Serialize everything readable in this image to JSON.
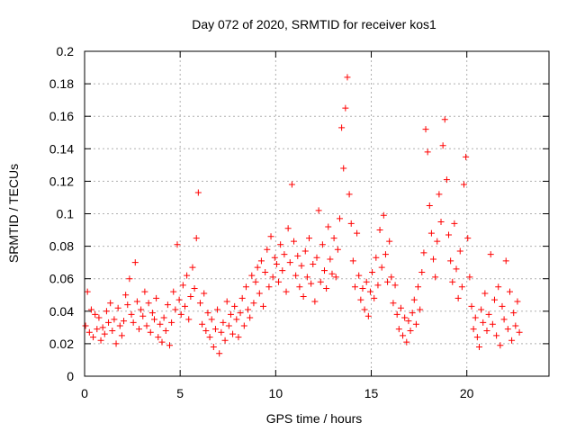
{
  "chart_data": {
    "type": "scatter",
    "title": "Day 072 of 2020, SRMTID for receiver kos1",
    "xlabel": "GPS time / hours",
    "ylabel": "SRMTID / TECUs",
    "xlim": [
      0,
      24.3
    ],
    "ylim": [
      0,
      0.2
    ],
    "xticks": [
      0,
      5,
      10,
      15,
      20
    ],
    "xtick_labels": [
      "0",
      "5",
      "10",
      "15",
      "20"
    ],
    "yticks": [
      0,
      0.02,
      0.04,
      0.06,
      0.08,
      0.1,
      0.12,
      0.14,
      0.16,
      0.18,
      0.2
    ],
    "ytick_labels": [
      "0",
      "0.02",
      "0.04",
      "0.06",
      "0.08",
      "0.1",
      "0.12",
      "0.14",
      "0.16",
      "0.18",
      "0.2"
    ],
    "grid": true,
    "marker": "+",
    "series": [
      {
        "name": "SRMTID",
        "color": "#ff0000",
        "points": [
          [
            0.05,
            0.031
          ],
          [
            0.15,
            0.052
          ],
          [
            0.25,
            0.027
          ],
          [
            0.35,
            0.041
          ],
          [
            0.45,
            0.024
          ],
          [
            0.55,
            0.038
          ],
          [
            0.65,
            0.029
          ],
          [
            0.75,
            0.036
          ],
          [
            0.85,
            0.022
          ],
          [
            0.95,
            0.03
          ],
          [
            1.05,
            0.026
          ],
          [
            1.15,
            0.04
          ],
          [
            1.25,
            0.033
          ],
          [
            1.35,
            0.045
          ],
          [
            1.45,
            0.028
          ],
          [
            1.55,
            0.035
          ],
          [
            1.65,
            0.02
          ],
          [
            1.75,
            0.042
          ],
          [
            1.85,
            0.031
          ],
          [
            1.95,
            0.025
          ],
          [
            2.05,
            0.034
          ],
          [
            2.15,
            0.05
          ],
          [
            2.25,
            0.044
          ],
          [
            2.35,
            0.06
          ],
          [
            2.45,
            0.038
          ],
          [
            2.55,
            0.033
          ],
          [
            2.65,
            0.07
          ],
          [
            2.75,
            0.046
          ],
          [
            2.85,
            0.029
          ],
          [
            2.95,
            0.041
          ],
          [
            3.05,
            0.037
          ],
          [
            3.15,
            0.052
          ],
          [
            3.25,
            0.031
          ],
          [
            3.35,
            0.045
          ],
          [
            3.45,
            0.027
          ],
          [
            3.55,
            0.039
          ],
          [
            3.65,
            0.035
          ],
          [
            3.75,
            0.048
          ],
          [
            3.85,
            0.024
          ],
          [
            3.95,
            0.032
          ],
          [
            4.05,
            0.021
          ],
          [
            4.15,
            0.036
          ],
          [
            4.25,
            0.028
          ],
          [
            4.35,
            0.044
          ],
          [
            4.45,
            0.019
          ],
          [
            4.55,
            0.033
          ],
          [
            4.65,
            0.052
          ],
          [
            4.75,
            0.041
          ],
          [
            4.85,
            0.081
          ],
          [
            4.95,
            0.047
          ],
          [
            5.05,
            0.038
          ],
          [
            5.15,
            0.056
          ],
          [
            5.25,
            0.043
          ],
          [
            5.35,
            0.062
          ],
          [
            5.45,
            0.035
          ],
          [
            5.55,
            0.049
          ],
          [
            5.65,
            0.067
          ],
          [
            5.75,
            0.054
          ],
          [
            5.85,
            0.085
          ],
          [
            5.95,
            0.113
          ],
          [
            6.05,
            0.045
          ],
          [
            6.15,
            0.032
          ],
          [
            6.25,
            0.051
          ],
          [
            6.35,
            0.028
          ],
          [
            6.45,
            0.039
          ],
          [
            6.55,
            0.024
          ],
          [
            6.65,
            0.035
          ],
          [
            6.75,
            0.018
          ],
          [
            6.85,
            0.029
          ],
          [
            6.95,
            0.041
          ],
          [
            7.05,
            0.014
          ],
          [
            7.15,
            0.027
          ],
          [
            7.25,
            0.033
          ],
          [
            7.35,
            0.022
          ],
          [
            7.45,
            0.046
          ],
          [
            7.55,
            0.031
          ],
          [
            7.65,
            0.038
          ],
          [
            7.75,
            0.026
          ],
          [
            7.85,
            0.043
          ],
          [
            7.95,
            0.035
          ],
          [
            8.05,
            0.024
          ],
          [
            8.15,
            0.039
          ],
          [
            8.25,
            0.048
          ],
          [
            8.35,
            0.031
          ],
          [
            8.45,
            0.055
          ],
          [
            8.55,
            0.041
          ],
          [
            8.65,
            0.036
          ],
          [
            8.75,
            0.062
          ],
          [
            8.85,
            0.045
          ],
          [
            8.95,
            0.058
          ],
          [
            9.05,
            0.067
          ],
          [
            9.15,
            0.051
          ],
          [
            9.25,
            0.071
          ],
          [
            9.35,
            0.043
          ],
          [
            9.45,
            0.064
          ],
          [
            9.55,
            0.078
          ],
          [
            9.65,
            0.055
          ],
          [
            9.75,
            0.086
          ],
          [
            9.85,
            0.061
          ],
          [
            9.95,
            0.073
          ],
          [
            10.05,
            0.069
          ],
          [
            10.15,
            0.058
          ],
          [
            10.25,
            0.081
          ],
          [
            10.35,
            0.065
          ],
          [
            10.45,
            0.075
          ],
          [
            10.55,
            0.052
          ],
          [
            10.65,
            0.091
          ],
          [
            10.75,
            0.07
          ],
          [
            10.85,
            0.118
          ],
          [
            10.95,
            0.083
          ],
          [
            11.05,
            0.062
          ],
          [
            11.15,
            0.074
          ],
          [
            11.25,
            0.055
          ],
          [
            11.35,
            0.068
          ],
          [
            11.45,
            0.049
          ],
          [
            11.55,
            0.077
          ],
          [
            11.65,
            0.061
          ],
          [
            11.75,
            0.085
          ],
          [
            11.85,
            0.057
          ],
          [
            11.95,
            0.069
          ],
          [
            12.05,
            0.046
          ],
          [
            12.15,
            0.073
          ],
          [
            12.25,
            0.102
          ],
          [
            12.35,
            0.058
          ],
          [
            12.45,
            0.081
          ],
          [
            12.55,
            0.065
          ],
          [
            12.65,
            0.054
          ],
          [
            12.75,
            0.092
          ],
          [
            12.85,
            0.072
          ],
          [
            12.95,
            0.063
          ],
          [
            13.05,
            0.085
          ],
          [
            13.15,
            0.061
          ],
          [
            13.25,
            0.078
          ],
          [
            13.35,
            0.097
          ],
          [
            13.45,
            0.153
          ],
          [
            13.55,
            0.128
          ],
          [
            13.65,
            0.165
          ],
          [
            13.75,
            0.184
          ],
          [
            13.85,
            0.112
          ],
          [
            13.95,
            0.094
          ],
          [
            14.05,
            0.071
          ],
          [
            14.15,
            0.055
          ],
          [
            14.25,
            0.088
          ],
          [
            14.35,
            0.062
          ],
          [
            14.45,
            0.047
          ],
          [
            14.55,
            0.054
          ],
          [
            14.65,
            0.041
          ],
          [
            14.75,
            0.058
          ],
          [
            14.85,
            0.037
          ],
          [
            14.95,
            0.052
          ],
          [
            15.05,
            0.064
          ],
          [
            15.15,
            0.048
          ],
          [
            15.25,
            0.073
          ],
          [
            15.35,
            0.056
          ],
          [
            15.45,
            0.09
          ],
          [
            15.55,
            0.067
          ],
          [
            15.65,
            0.099
          ],
          [
            15.75,
            0.075
          ],
          [
            15.85,
            0.058
          ],
          [
            15.95,
            0.083
          ],
          [
            16.05,
            0.061
          ],
          [
            16.15,
            0.045
          ],
          [
            16.25,
            0.056
          ],
          [
            16.35,
            0.038
          ],
          [
            16.45,
            0.029
          ],
          [
            16.55,
            0.042
          ],
          [
            16.65,
            0.025
          ],
          [
            16.75,
            0.036
          ],
          [
            16.85,
            0.021
          ],
          [
            16.95,
            0.034
          ],
          [
            17.05,
            0.028
          ],
          [
            17.15,
            0.039
          ],
          [
            17.25,
            0.047
          ],
          [
            17.35,
            0.032
          ],
          [
            17.45,
            0.055
          ],
          [
            17.55,
            0.041
          ],
          [
            17.65,
            0.064
          ],
          [
            17.75,
            0.076
          ],
          [
            17.85,
            0.152
          ],
          [
            17.95,
            0.138
          ],
          [
            18.05,
            0.105
          ],
          [
            18.15,
            0.088
          ],
          [
            18.25,
            0.072
          ],
          [
            18.35,
            0.061
          ],
          [
            18.45,
            0.083
          ],
          [
            18.55,
            0.112
          ],
          [
            18.65,
            0.095
          ],
          [
            18.75,
            0.142
          ],
          [
            18.85,
            0.158
          ],
          [
            18.95,
            0.121
          ],
          [
            19.05,
            0.087
          ],
          [
            19.15,
            0.071
          ],
          [
            19.25,
            0.058
          ],
          [
            19.35,
            0.094
          ],
          [
            19.45,
            0.066
          ],
          [
            19.55,
            0.048
          ],
          [
            19.65,
            0.077
          ],
          [
            19.75,
            0.055
          ],
          [
            19.85,
            0.118
          ],
          [
            19.95,
            0.135
          ],
          [
            20.05,
            0.085
          ],
          [
            20.15,
            0.061
          ],
          [
            20.25,
            0.043
          ],
          [
            20.35,
            0.029
          ],
          [
            20.45,
            0.036
          ],
          [
            20.55,
            0.024
          ],
          [
            20.65,
            0.018
          ],
          [
            20.75,
            0.041
          ],
          [
            20.85,
            0.033
          ],
          [
            20.95,
            0.051
          ],
          [
            21.05,
            0.028
          ],
          [
            21.15,
            0.038
          ],
          [
            21.25,
            0.075
          ],
          [
            21.35,
            0.032
          ],
          [
            21.45,
            0.047
          ],
          [
            21.55,
            0.025
          ],
          [
            21.65,
            0.055
          ],
          [
            21.75,
            0.019
          ],
          [
            21.85,
            0.043
          ],
          [
            21.95,
            0.035
          ],
          [
            22.05,
            0.071
          ],
          [
            22.15,
            0.029
          ],
          [
            22.25,
            0.052
          ],
          [
            22.35,
            0.022
          ],
          [
            22.45,
            0.039
          ],
          [
            22.55,
            0.031
          ],
          [
            22.65,
            0.046
          ],
          [
            22.75,
            0.027
          ]
        ]
      }
    ]
  }
}
